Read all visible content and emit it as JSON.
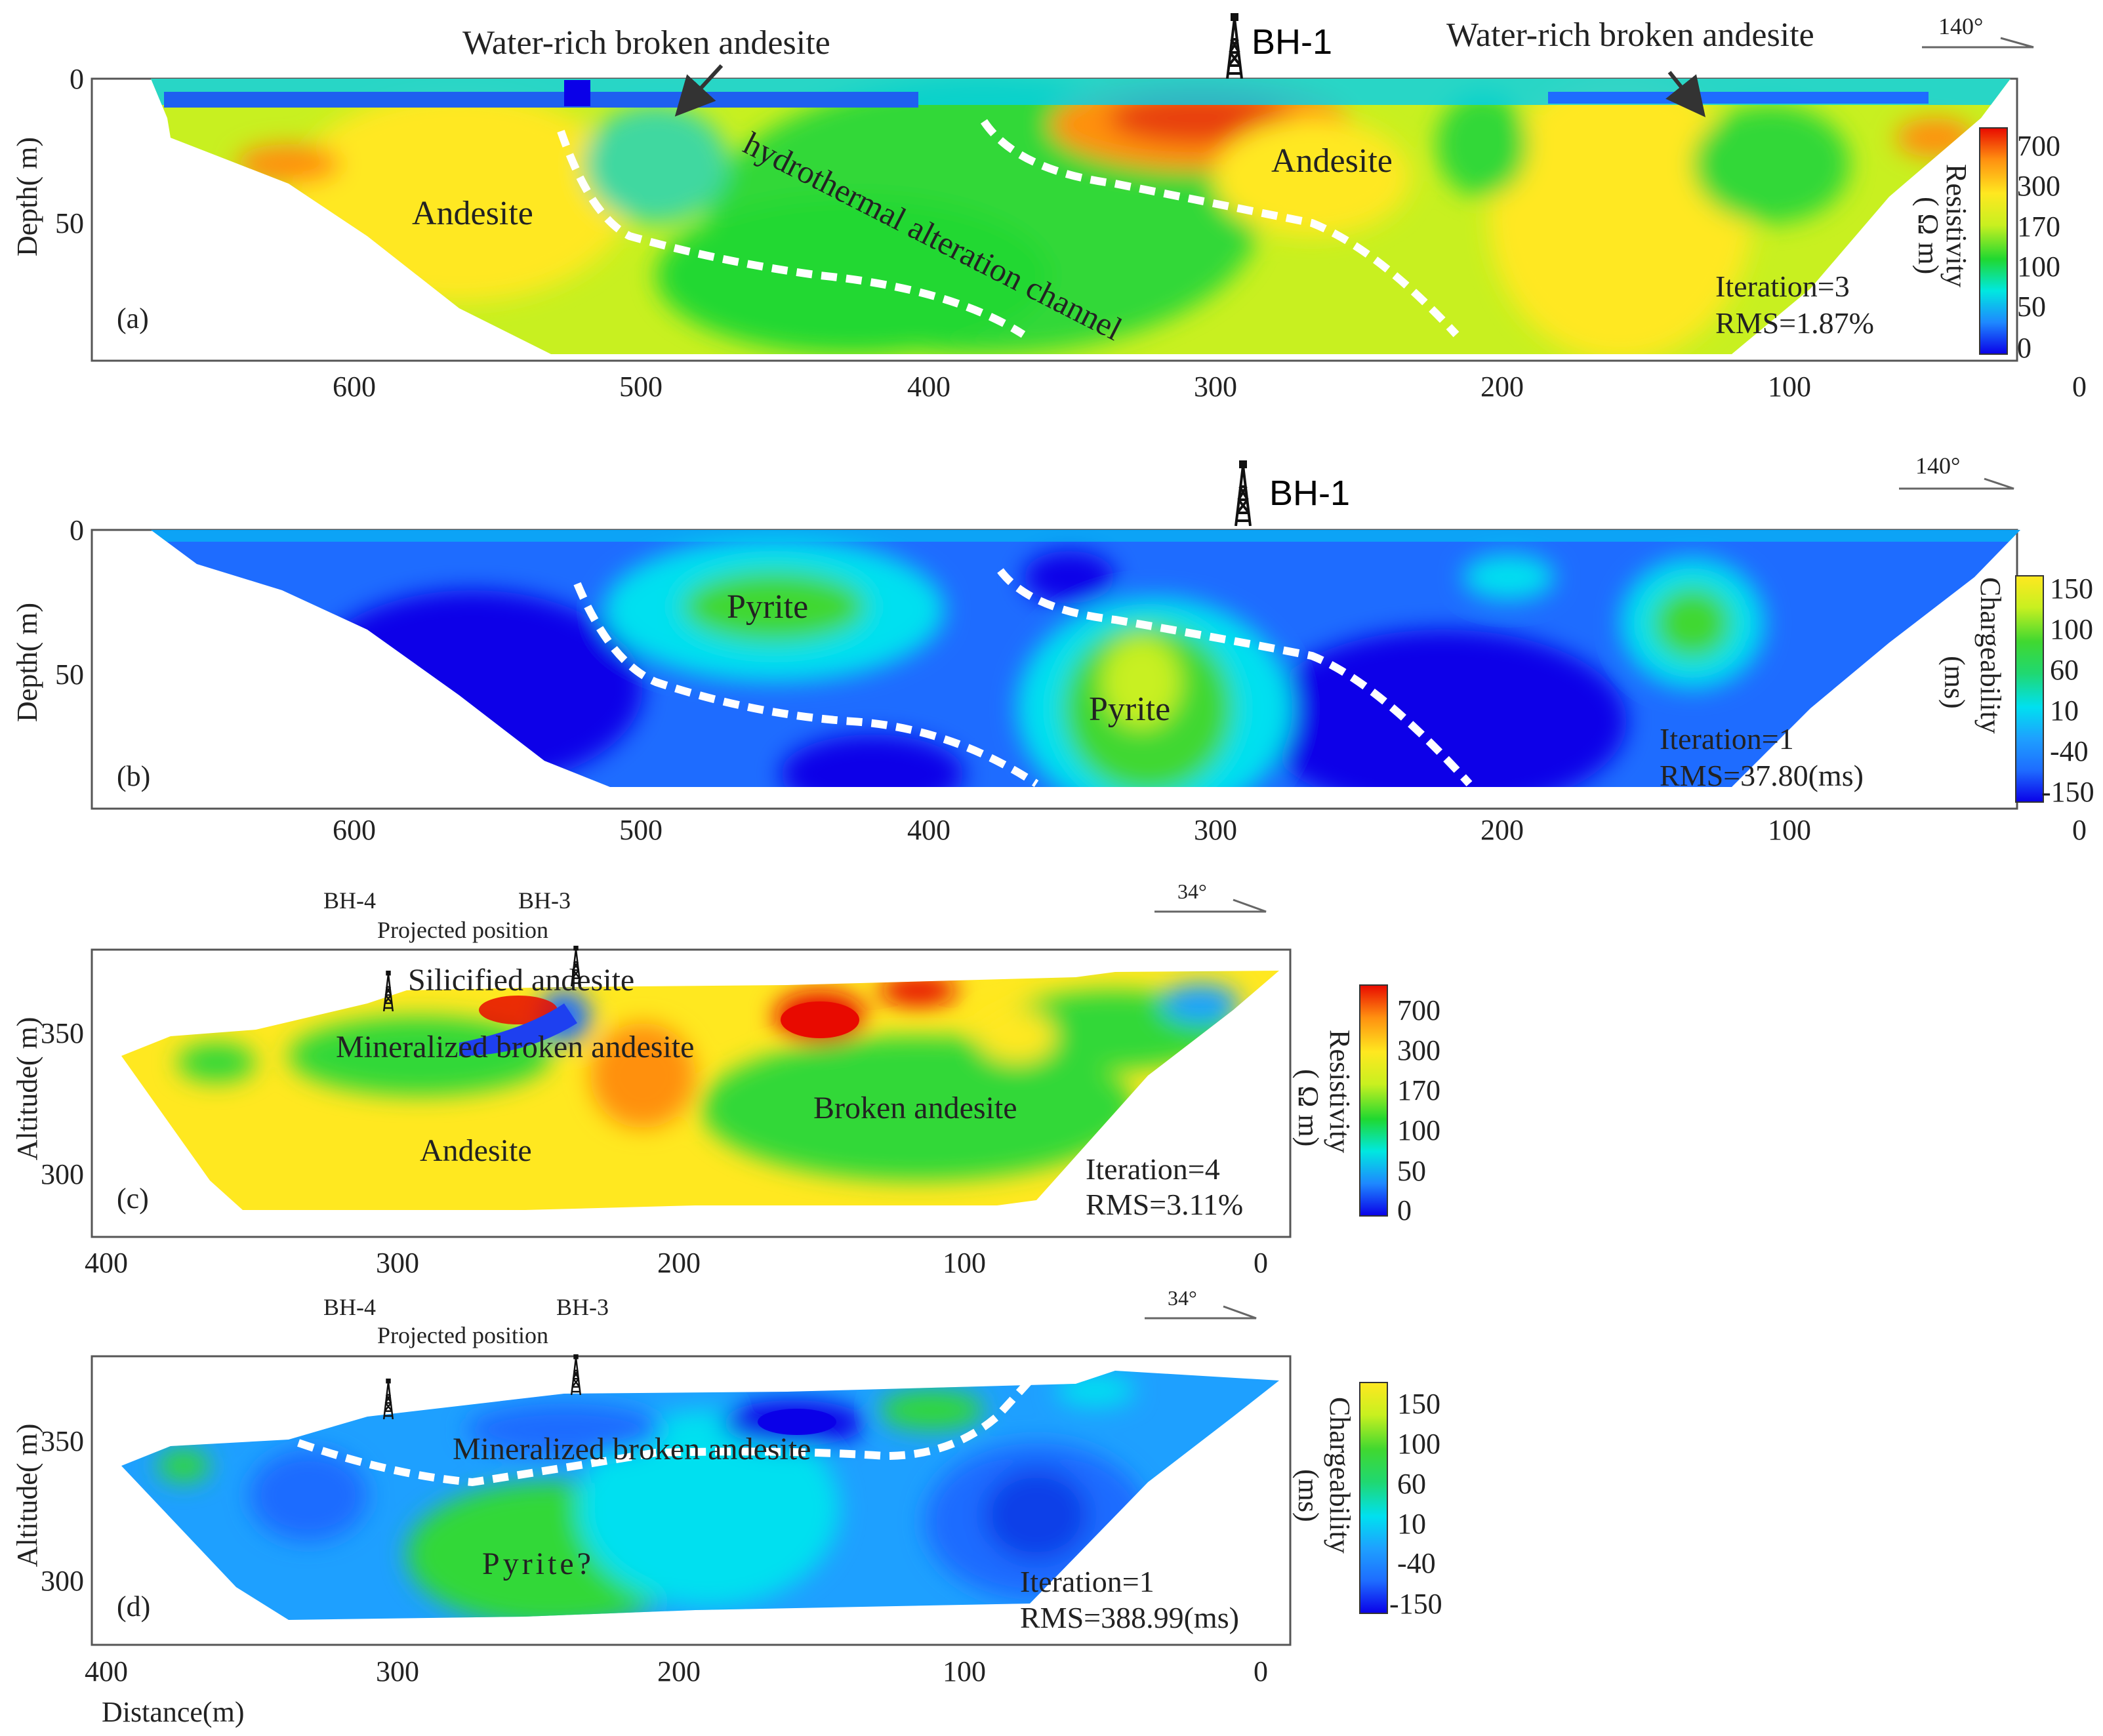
{
  "chart_data": [
    {
      "type": "heatmap",
      "panel_label": "(a)",
      "ylabel": "Depth( m)",
      "xticks": [
        "600",
        "500",
        "400",
        "300",
        "200",
        "100",
        "0"
      ],
      "yticks": [
        "0",
        "50"
      ],
      "xlim": [
        0,
        700
      ],
      "ylim": [
        0,
        90
      ],
      "x_reversed": true,
      "orientation": "140°",
      "borehole": "BH-1",
      "iteration": "Iteration=3",
      "rms": "RMS=1.87%",
      "colorbar": {
        "title": "Resistivity",
        "unit": "( Ω m)",
        "ticks": [
          "700",
          "300",
          "170",
          "100",
          "50",
          "0"
        ],
        "colors": [
          "#0a00e8",
          "#1e88ff",
          "#00e8e0",
          "#20d830",
          "#c8f020",
          "#ffe820",
          "#ff9010",
          "#e80a00"
        ]
      },
      "annotations": [
        "Water-rich broken andesite",
        "Water-rich broken andesite",
        "Andesite",
        "Andesite",
        "hydrothermal alteration channel"
      ]
    },
    {
      "type": "heatmap",
      "panel_label": "(b)",
      "ylabel": "Depth( m)",
      "xticks": [
        "600",
        "500",
        "400",
        "300",
        "200",
        "100",
        "0"
      ],
      "yticks": [
        "0",
        "50"
      ],
      "xlim": [
        0,
        700
      ],
      "ylim": [
        0,
        90
      ],
      "x_reversed": true,
      "orientation": "140°",
      "borehole": "BH-1",
      "iteration": "Iteration=1",
      "rms": "RMS=37.80(ms)",
      "colorbar": {
        "title": "Chargeability",
        "unit": "(ms)",
        "ticks": [
          "150",
          "100",
          "60",
          "10",
          "-40",
          "-150"
        ],
        "colors": [
          "#0a00e8",
          "#1e6cff",
          "#1ea0ff",
          "#00e0f0",
          "#20d870",
          "#40d830",
          "#c8f020",
          "#ffe820"
        ]
      },
      "annotations": [
        "Pyrite",
        "Pyrite"
      ]
    },
    {
      "type": "heatmap",
      "panel_label": "(c)",
      "ylabel": "Altitude( m)",
      "xticks": [
        "400",
        "300",
        "200",
        "100",
        "0"
      ],
      "yticks": [
        "350",
        "300"
      ],
      "xlim": [
        0,
        400
      ],
      "ylim": [
        290,
        380
      ],
      "x_reversed": true,
      "orientation": "34°",
      "boreholes": [
        "BH-4",
        "BH-3"
      ],
      "borehole_note": "Projected position",
      "iteration": "Iteration=4",
      "rms": "RMS=3.11%",
      "colorbar": {
        "title": "Resistivity",
        "unit": "( Ω m)",
        "ticks": [
          "700",
          "300",
          "170",
          "100",
          "50",
          "0"
        ],
        "colors": [
          "#0a00e8",
          "#1e88ff",
          "#00e8e0",
          "#20d830",
          "#c8f020",
          "#ffe820",
          "#ff9010",
          "#e80a00"
        ]
      },
      "annotations": [
        "Silicified andesite",
        "Mineralized broken andesite",
        "Andesite",
        "Broken andesite"
      ]
    },
    {
      "type": "heatmap",
      "panel_label": "(d)",
      "ylabel": "Altitude( m)",
      "xlabel": "Distance(m)",
      "xticks": [
        "400",
        "300",
        "200",
        "100",
        "0"
      ],
      "yticks": [
        "350",
        "300"
      ],
      "xlim": [
        0,
        400
      ],
      "ylim": [
        290,
        380
      ],
      "x_reversed": true,
      "orientation": "34°",
      "boreholes": [
        "BH-4",
        "BH-3"
      ],
      "borehole_note": "Projected position",
      "iteration": "Iteration=1",
      "rms": "RMS=388.99(ms)",
      "colorbar": {
        "title": "Chargeability",
        "unit": "(ms)",
        "ticks": [
          "150",
          "100",
          "60",
          "10",
          "-40",
          "-150"
        ],
        "colors": [
          "#0a00e8",
          "#1e6cff",
          "#1ea0ff",
          "#00e0f0",
          "#20d870",
          "#40d830",
          "#c8f020",
          "#ffe820"
        ]
      },
      "annotations": [
        "Mineralized broken andesite",
        "Pyrite?"
      ]
    }
  ],
  "colors": {
    "deep_blue": "#0a00e8",
    "blue": "#1e6cff",
    "cyan": "#00e0f0",
    "green": "#30d838",
    "yellow_green": "#c8f020",
    "yellow": "#ffe820",
    "orange": "#ff9010",
    "red": "#e80a00",
    "dash": "#ffffff"
  }
}
